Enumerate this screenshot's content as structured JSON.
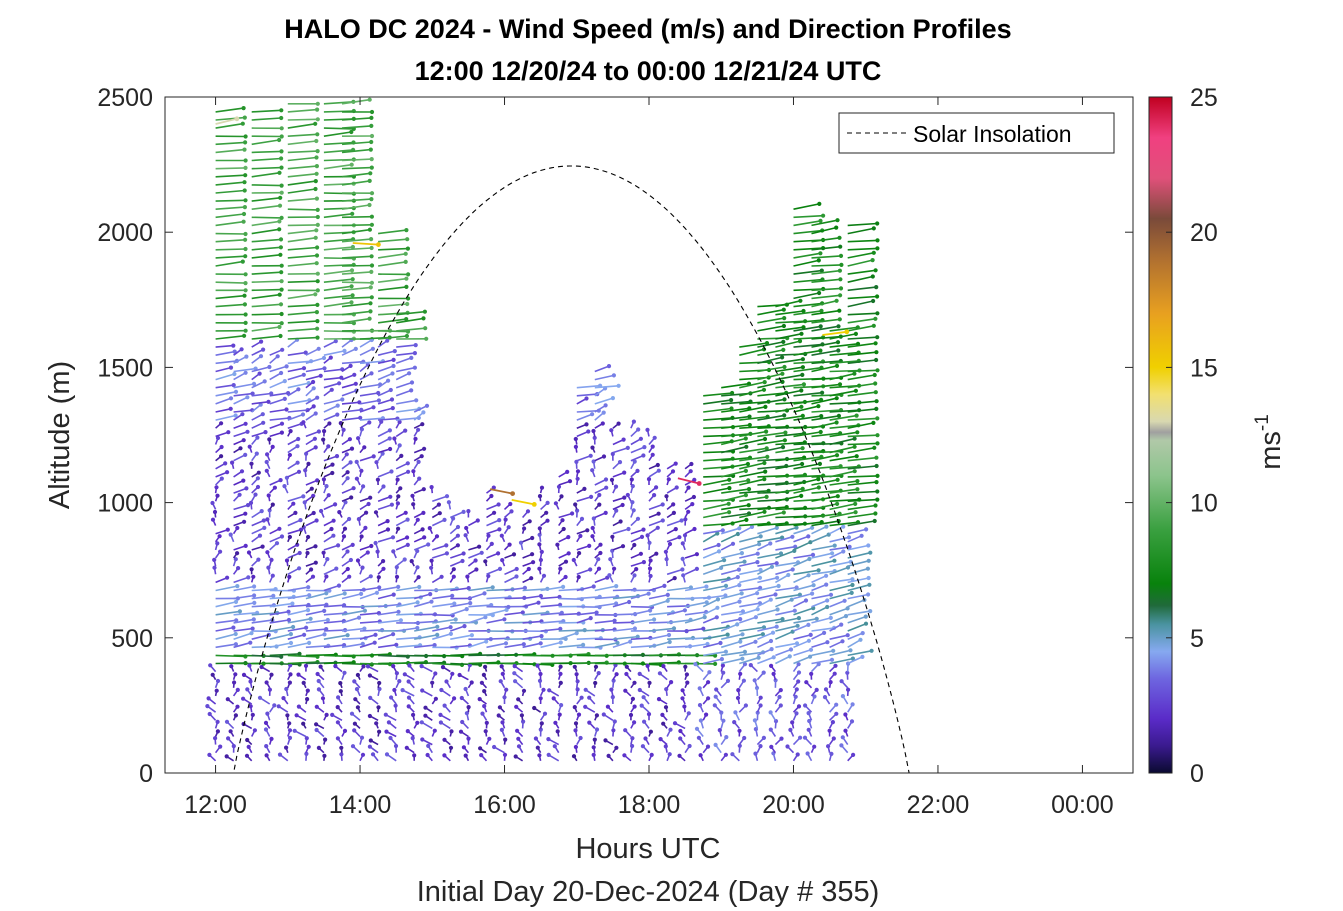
{
  "chart_data": {
    "type": "quiver",
    "title": "HALO DC 2024 - Wind Speed (m/s) and Direction Profiles",
    "subtitle": "12:00 12/20/24 to 00:00 12/21/24  UTC",
    "xlabel": "Hours UTC",
    "xlabel2": "Initial Day 20-Dec-2024 (Day # 355)",
    "ylabel": "Altitude (m)",
    "xlim_hours": [
      11.3,
      24.7
    ],
    "ylim": [
      0,
      2500
    ],
    "x_ticks": [
      {
        "value": 12,
        "label": "12:00"
      },
      {
        "value": 14,
        "label": "14:00"
      },
      {
        "value": 16,
        "label": "16:00"
      },
      {
        "value": 18,
        "label": "18:00"
      },
      {
        "value": 20,
        "label": "20:00"
      },
      {
        "value": 22,
        "label": "22:00"
      },
      {
        "value": 24,
        "label": "00:00"
      }
    ],
    "y_ticks": [
      {
        "value": 0,
        "label": "0"
      },
      {
        "value": 500,
        "label": "500"
      },
      {
        "value": 1000,
        "label": "1000"
      },
      {
        "value": 1500,
        "label": "1500"
      },
      {
        "value": 2000,
        "label": "2000"
      },
      {
        "value": 2500,
        "label": "2500"
      }
    ],
    "legend": {
      "label": "Solar Insolation",
      "placement": "top-right",
      "style": "dashed"
    },
    "solar_insolation": {
      "sunrise_hour": 12.25,
      "sunset_hour": 21.6,
      "peak_hour": 16.9,
      "peak_altitude": 2245
    },
    "colorbar": {
      "label": "ms",
      "label_exponent": "-1",
      "range": [
        0,
        25
      ],
      "ticks": [
        {
          "value": 0,
          "label": "0"
        },
        {
          "value": 5,
          "label": "5"
        },
        {
          "value": 10,
          "label": "10"
        },
        {
          "value": 15,
          "label": "15"
        },
        {
          "value": 20,
          "label": "20"
        },
        {
          "value": 25,
          "label": "25"
        }
      ],
      "stops": [
        {
          "value": 0,
          "color": "#0a0a30"
        },
        {
          "value": 1,
          "color": "#3a1a8e"
        },
        {
          "value": 2,
          "color": "#5a2bc8"
        },
        {
          "value": 3.5,
          "color": "#6e66e0"
        },
        {
          "value": 4.5,
          "color": "#86a9f0"
        },
        {
          "value": 5.5,
          "color": "#4a93a0"
        },
        {
          "value": 6.2,
          "color": "#206a3a"
        },
        {
          "value": 7,
          "color": "#08820c"
        },
        {
          "value": 9,
          "color": "#3aa040"
        },
        {
          "value": 11,
          "color": "#8cc48c"
        },
        {
          "value": 12.3,
          "color": "#b0c8a8"
        },
        {
          "value": 12.6,
          "color": "#a0a0a0"
        },
        {
          "value": 13,
          "color": "#d8d8b0"
        },
        {
          "value": 14,
          "color": "#f2e070"
        },
        {
          "value": 15,
          "color": "#f0d000"
        },
        {
          "value": 17,
          "color": "#e8a020"
        },
        {
          "value": 19,
          "color": "#b07030"
        },
        {
          "value": 20.5,
          "color": "#7a4a3a"
        },
        {
          "value": 22,
          "color": "#e0507a"
        },
        {
          "value": 23.5,
          "color": "#f04080"
        },
        {
          "value": 25,
          "color": "#c00020"
        }
      ]
    },
    "profile_times_hours": [
      12.0,
      12.25,
      12.5,
      12.75,
      13.0,
      13.25,
      13.5,
      13.75,
      14.0,
      14.25,
      14.5,
      14.75,
      15.0,
      15.25,
      15.5,
      15.75,
      16.0,
      16.25,
      16.5,
      16.75,
      17.0,
      17.25,
      17.5,
      17.75,
      18.0,
      18.25,
      18.5,
      18.75,
      19.0,
      19.25,
      19.5,
      19.75,
      20.0,
      20.25,
      20.5,
      20.75
    ],
    "profile_top_altitudes_m": [
      2450,
      1550,
      2450,
      1550,
      2500,
      1550,
      2500,
      2500,
      1650,
      2000,
      1700,
      1350,
      1050,
      1000,
      950,
      1050,
      1000,
      950,
      1050,
      1100,
      1450,
      1500,
      1300,
      1300,
      1250,
      1150,
      1150,
      1400,
      1450,
      1600,
      1750,
      1750,
      2100,
      2050,
      1650,
      2050
    ],
    "sample_spacing_m": 30,
    "wind_segments": [
      {
        "alt_min": 0,
        "alt_max": 400,
        "speed": 2.2,
        "dir": 170,
        "var": 25
      },
      {
        "alt_min": 400,
        "alt_max": 460,
        "speed": 7.2,
        "dir": 270,
        "var": 8
      },
      {
        "alt_min": 460,
        "alt_max": 700,
        "speed": 4.0,
        "dir": 250,
        "var": 25
      },
      {
        "alt_min": 700,
        "alt_max": 1300,
        "speed": 2.3,
        "dir": 200,
        "var": 30
      },
      {
        "alt_min": 1300,
        "alt_max": 1600,
        "speed": 3.5,
        "dir": 230,
        "var": 30
      },
      {
        "alt_min": 1600,
        "alt_max": 2500,
        "speed": 9.0,
        "dir": 260,
        "var": 15
      }
    ],
    "late_profile_segments": [
      {
        "alt_min": 0,
        "alt_max": 400,
        "speed": 3.0,
        "dir": 180,
        "var": 20
      },
      {
        "alt_min": 400,
        "alt_max": 900,
        "speed": 4.5,
        "dir": 230,
        "var": 20
      },
      {
        "alt_min": 900,
        "alt_max": 2200,
        "speed": 7.5,
        "dir": 250,
        "var": 15
      }
    ],
    "highlighted_vectors": [
      {
        "hour": 13.9,
        "altitude": 1960,
        "speed": 15.5,
        "dir": 280
      },
      {
        "hour": 15.8,
        "altitude": 1050,
        "speed": 19.0,
        "dir": 300
      },
      {
        "hour": 16.1,
        "altitude": 1010,
        "speed": 15.0,
        "dir": 300
      },
      {
        "hour": 18.4,
        "altitude": 1090,
        "speed": 24.0,
        "dir": 305
      },
      {
        "hour": 20.4,
        "altitude": 1620,
        "speed": 15.0,
        "dir": 250
      },
      {
        "hour": 12.0,
        "altitude": 2400,
        "speed": 13.0,
        "dir": 235
      }
    ]
  }
}
